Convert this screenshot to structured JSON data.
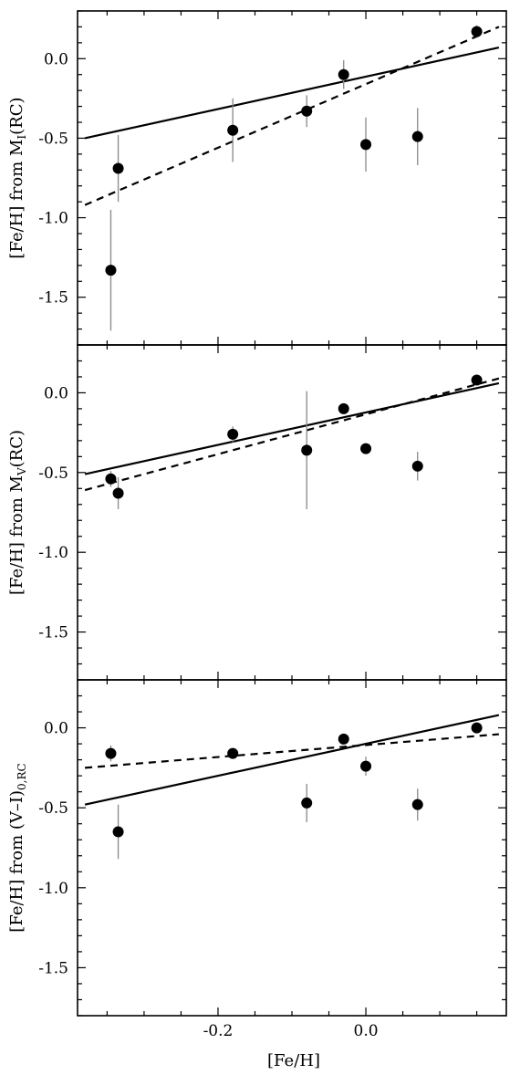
{
  "chart_data": [
    {
      "type": "scatter",
      "ylabel": "[Fe/H] from M",
      "ylabel_sub": "I",
      "ylabel_suffix": "(RC)",
      "xlim": [
        -0.39,
        0.19
      ],
      "ylim": [
        -1.8,
        0.3
      ],
      "yticks": [
        0.0,
        -0.5,
        -1.0,
        -1.5
      ],
      "ytick_labels": [
        "0.0",
        "-0.5",
        "-1.0",
        "-1.5"
      ],
      "points": [
        {
          "x": -0.345,
          "y": -1.33,
          "err": 0.38
        },
        {
          "x": -0.335,
          "y": -0.69,
          "err": 0.21
        },
        {
          "x": -0.18,
          "y": -0.45,
          "err": 0.2
        },
        {
          "x": -0.08,
          "y": -0.33,
          "err": 0.1
        },
        {
          "x": -0.03,
          "y": -0.1,
          "err": 0.09
        },
        {
          "x": 0.0,
          "y": -0.54,
          "err": 0.17
        },
        {
          "x": 0.07,
          "y": -0.49,
          "err": 0.18
        },
        {
          "x": 0.15,
          "y": 0.17,
          "err": 0.04
        }
      ],
      "fits": [
        {
          "style": "solid",
          "x": [
            -0.38,
            0.18
          ],
          "y": [
            -0.5,
            0.07
          ]
        },
        {
          "style": "dashed",
          "x": [
            -0.38,
            0.18
          ],
          "y": [
            -0.92,
            0.2
          ]
        }
      ],
      "grid": false
    },
    {
      "type": "scatter",
      "ylabel": "[Fe/H] from M",
      "ylabel_sub": "V",
      "ylabel_suffix": "(RC)",
      "xlim": [
        -0.39,
        0.19
      ],
      "ylim": [
        -1.8,
        0.3
      ],
      "yticks": [
        0.0,
        -0.5,
        -1.0,
        -1.5
      ],
      "ytick_labels": [
        "0.0",
        "-0.5",
        "-1.0",
        "-1.5"
      ],
      "points": [
        {
          "x": -0.345,
          "y": -0.54,
          "err": 0.05
        },
        {
          "x": -0.335,
          "y": -0.63,
          "err": 0.1
        },
        {
          "x": -0.18,
          "y": -0.26,
          "err": 0.05
        },
        {
          "x": -0.08,
          "y": -0.36,
          "err": 0.37
        },
        {
          "x": -0.03,
          "y": -0.1,
          "err": 0.03
        },
        {
          "x": 0.0,
          "y": -0.35,
          "err": 0.03
        },
        {
          "x": 0.07,
          "y": -0.46,
          "err": 0.09
        },
        {
          "x": 0.15,
          "y": 0.08,
          "err": 0.03
        }
      ],
      "fits": [
        {
          "style": "solid",
          "x": [
            -0.38,
            0.18
          ],
          "y": [
            -0.51,
            0.06
          ]
        },
        {
          "style": "dashed",
          "x": [
            -0.38,
            0.18
          ],
          "y": [
            -0.61,
            0.09
          ]
        }
      ],
      "grid": false
    },
    {
      "type": "scatter",
      "ylabel": "[Fe/H] from (V–I)",
      "ylabel_sub": "0,RC",
      "ylabel_suffix": "",
      "xlabel": "[Fe/H]",
      "xlim": [
        -0.39,
        0.19
      ],
      "ylim": [
        -1.8,
        0.3
      ],
      "xticks": [
        -0.2,
        0.0
      ],
      "xtick_labels": [
        "-0.2",
        "0.0"
      ],
      "yticks": [
        0.0,
        -0.5,
        -1.0,
        -1.5
      ],
      "ytick_labels": [
        "0.0",
        "-0.5",
        "-1.0",
        "-1.5"
      ],
      "points": [
        {
          "x": -0.345,
          "y": -0.16,
          "err": 0.05
        },
        {
          "x": -0.335,
          "y": -0.65,
          "err": 0.17
        },
        {
          "x": -0.18,
          "y": -0.16,
          "err": 0.03
        },
        {
          "x": -0.08,
          "y": -0.47,
          "err": 0.12
        },
        {
          "x": -0.03,
          "y": -0.07,
          "err": 0.03
        },
        {
          "x": 0.0,
          "y": -0.24,
          "err": 0.06
        },
        {
          "x": 0.07,
          "y": -0.48,
          "err": 0.1
        },
        {
          "x": 0.15,
          "y": 0.0,
          "err": 0.02
        }
      ],
      "fits": [
        {
          "style": "solid",
          "x": [
            -0.38,
            0.18
          ],
          "y": [
            -0.48,
            0.08
          ]
        },
        {
          "style": "dashed",
          "x": [
            -0.38,
            0.18
          ],
          "y": [
            -0.25,
            -0.04
          ]
        }
      ],
      "grid": false
    }
  ]
}
